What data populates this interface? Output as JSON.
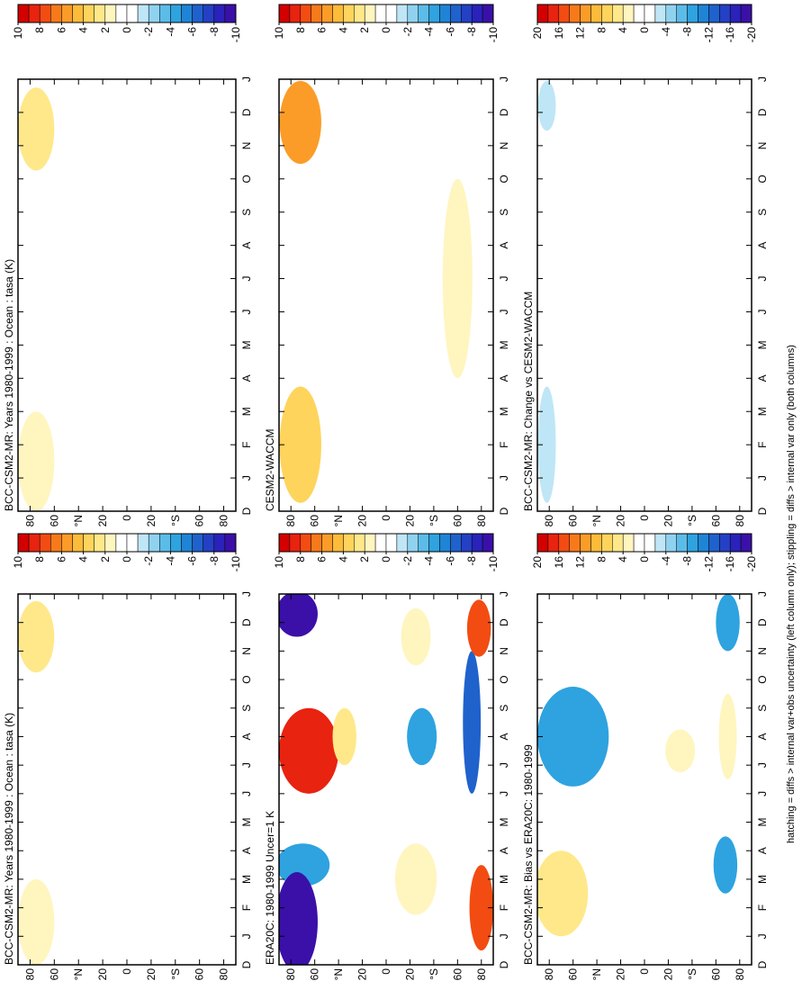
{
  "note": "hatching = diffs > internal var+obs uncertainty (left column only); stippling = diffs > internal var only (both columns)",
  "chart_data": [
    {
      "type": "contour",
      "title": "BCC-CSM2-MR: Years 1980-1999 : Ocean : tasa (K)",
      "categories": [
        "D",
        "J",
        "F",
        "M",
        "A",
        "M",
        "J",
        "J",
        "A",
        "S",
        "O",
        "N",
        "D",
        "J"
      ],
      "xlim": [
        0,
        13
      ],
      "ylim": [
        90,
        -90
      ],
      "yticks": [
        80,
        60,
        {
          "value": 40,
          "label": "°N"
        },
        20,
        0,
        {
          "value": -20,
          "label": "20"
        },
        {
          "value": -40,
          "label": "°S"
        },
        {
          "value": -60,
          "label": "60"
        },
        {
          "value": -80,
          "label": "80"
        }
      ],
      "clim": [
        10,
        -10
      ],
      "cticks": [
        10,
        8,
        6,
        4,
        2,
        0,
        -2,
        -4,
        -6,
        -8,
        -10
      ],
      "colors": [
        "#d40000",
        "#e8230f",
        "#f24c12",
        "#f77a1a",
        "#fb9c28",
        "#fdbb3a",
        "#fed45c",
        "#ffe88a",
        "#fff5bf",
        "#ffffff",
        "#ffffff",
        "#bfe6f7",
        "#8fd2f0",
        "#5cbce8",
        "#2ea3e0",
        "#1f84d6",
        "#1f62cc",
        "#2440c4",
        "#2a22ba",
        "#3a10a8"
      ],
      "regions": [
        {
          "month": 1.5,
          "lat": 75,
          "months": 3,
          "lats": 30,
          "value": 2
        },
        {
          "month": 11.5,
          "lat": 75,
          "months": 2.5,
          "lats": 30,
          "value": 3
        },
        {
          "month": 8,
          "lat": -68,
          "months": 3,
          "lats": 10,
          "value": 1
        }
      ]
    },
    {
      "type": "contour",
      "title": "BCC-CSM2-MR: Years 1980-1999 : Ocean : tasa (K)",
      "categories": [
        "D",
        "J",
        "F",
        "M",
        "A",
        "M",
        "J",
        "J",
        "A",
        "S",
        "O",
        "N",
        "D",
        "J"
      ],
      "xlim": [
        0,
        13
      ],
      "ylim": [
        90,
        -90
      ],
      "yticks": [
        80,
        60,
        {
          "value": 40,
          "label": "°N"
        },
        20,
        0,
        {
          "value": -20,
          "label": "20"
        },
        {
          "value": -40,
          "label": "°S"
        },
        {
          "value": -60,
          "label": "60"
        },
        {
          "value": -80,
          "label": "80"
        }
      ],
      "clim": [
        10,
        -10
      ],
      "cticks": [
        10,
        8,
        6,
        4,
        2,
        0,
        -2,
        -4,
        -6,
        -8,
        -10
      ],
      "colors": [
        "#d40000",
        "#e8230f",
        "#f24c12",
        "#f77a1a",
        "#fb9c28",
        "#fdbb3a",
        "#fed45c",
        "#ffe88a",
        "#fff5bf",
        "#ffffff",
        "#ffffff",
        "#bfe6f7",
        "#8fd2f0",
        "#5cbce8",
        "#2ea3e0",
        "#1f84d6",
        "#1f62cc",
        "#2440c4",
        "#2a22ba",
        "#3a10a8"
      ],
      "regions": [
        {
          "month": 1.5,
          "lat": 75,
          "months": 3,
          "lats": 30,
          "value": 2
        },
        {
          "month": 11.5,
          "lat": 75,
          "months": 2.5,
          "lats": 30,
          "value": 3
        },
        {
          "month": 8,
          "lat": -68,
          "months": 3,
          "lats": 10,
          "value": 1
        }
      ]
    },
    {
      "type": "contour",
      "title": "ERA20C: 1980-1999 Uncer=1 K",
      "categories": [
        "D",
        "J",
        "F",
        "M",
        "A",
        "M",
        "J",
        "J",
        "A",
        "S",
        "O",
        "N",
        "D",
        "J"
      ],
      "xlim": [
        0,
        13
      ],
      "ylim": [
        90,
        -90
      ],
      "yticks": [
        80,
        60,
        {
          "value": 40,
          "label": "°N"
        },
        20,
        0,
        {
          "value": -20,
          "label": "20"
        },
        {
          "value": -40,
          "label": "°S"
        },
        {
          "value": -60,
          "label": "60"
        },
        {
          "value": -80,
          "label": "80"
        }
      ],
      "clim": [
        10,
        -10
      ],
      "cticks": [
        10,
        8,
        6,
        4,
        2,
        0,
        -2,
        -4,
        -6,
        -8,
        -10
      ],
      "colors": [
        "#d40000",
        "#e8230f",
        "#f24c12",
        "#f77a1a",
        "#fb9c28",
        "#fdbb3a",
        "#fed45c",
        "#ffe88a",
        "#fff5bf",
        "#ffffff",
        "#ffffff",
        "#bfe6f7",
        "#8fd2f0",
        "#5cbce8",
        "#2ea3e0",
        "#1f84d6",
        "#1f62cc",
        "#2440c4",
        "#2a22ba",
        "#3a10a8"
      ],
      "regions": [
        {
          "month": 3.5,
          "lat": 70,
          "months": 1.5,
          "lats": 45,
          "value": -4
        },
        {
          "month": 1.5,
          "lat": 75,
          "months": 3.5,
          "lats": 35,
          "value": -9
        },
        {
          "month": 12.3,
          "lat": 75,
          "months": 1.6,
          "lats": 35,
          "value": -9
        },
        {
          "month": 7.5,
          "lat": 65,
          "months": 3,
          "lats": 50,
          "value": 9
        },
        {
          "month": 8,
          "lat": 35,
          "months": 2,
          "lats": 20,
          "value": 3
        },
        {
          "month": 3,
          "lat": -25,
          "months": 2.5,
          "lats": 35,
          "value": 2
        },
        {
          "month": 8,
          "lat": -30,
          "months": 2,
          "lats": 25,
          "value": -4
        },
        {
          "month": 11.5,
          "lat": -25,
          "months": 2,
          "lats": 25,
          "value": 2
        },
        {
          "month": 8.5,
          "lat": -72,
          "months": 5,
          "lats": 15,
          "value": -6
        },
        {
          "month": 2,
          "lat": -80,
          "months": 3,
          "lats": 20,
          "value": 8
        },
        {
          "month": 11.8,
          "lat": -78,
          "months": 2,
          "lats": 20,
          "value": 8
        }
      ]
    },
    {
      "type": "contour",
      "title": "CESM2-WACCM",
      "categories": [
        "D",
        "J",
        "F",
        "M",
        "A",
        "M",
        "J",
        "J",
        "A",
        "S",
        "O",
        "N",
        "D",
        "J"
      ],
      "xlim": [
        0,
        13
      ],
      "ylim": [
        90,
        -90
      ],
      "yticks": [
        80,
        60,
        {
          "value": 40,
          "label": "°N"
        },
        20,
        0,
        {
          "value": -20,
          "label": "20"
        },
        {
          "value": -40,
          "label": "°S"
        },
        {
          "value": -60,
          "label": "60"
        },
        {
          "value": -80,
          "label": "80"
        }
      ],
      "clim": [
        10,
        -10
      ],
      "cticks": [
        10,
        8,
        6,
        4,
        2,
        0,
        -2,
        -4,
        -6,
        -8,
        -10
      ],
      "colors": [
        "#d40000",
        "#e8230f",
        "#f24c12",
        "#f77a1a",
        "#fb9c28",
        "#fdbb3a",
        "#fed45c",
        "#ffe88a",
        "#fff5bf",
        "#ffffff",
        "#ffffff",
        "#bfe6f7",
        "#8fd2f0",
        "#5cbce8",
        "#2ea3e0",
        "#1f84d6",
        "#1f62cc",
        "#2440c4",
        "#2a22ba",
        "#3a10a8"
      ],
      "regions": [
        {
          "month": 2,
          "lat": 72,
          "months": 3.5,
          "lats": 35,
          "value": 4
        },
        {
          "month": 11.7,
          "lat": 72,
          "months": 2.5,
          "lats": 35,
          "value": 6
        },
        {
          "month": 7,
          "lat": -60,
          "months": 6,
          "lats": 25,
          "value": 2
        }
      ]
    },
    {
      "type": "contour",
      "title": "BCC-CSM2-MR: Bias vs ERA20C: 1980-1999",
      "categories": [
        "D",
        "J",
        "F",
        "M",
        "A",
        "M",
        "J",
        "J",
        "A",
        "S",
        "O",
        "N",
        "D",
        "J"
      ],
      "xlim": [
        0,
        13
      ],
      "ylim": [
        90,
        -90
      ],
      "yticks": [
        80,
        60,
        {
          "value": 40,
          "label": "°N"
        },
        20,
        0,
        {
          "value": -20,
          "label": "20"
        },
        {
          "value": -40,
          "label": "°S"
        },
        {
          "value": -60,
          "label": "60"
        },
        {
          "value": -80,
          "label": "80"
        }
      ],
      "clim": [
        20,
        -20
      ],
      "cticks": [
        20,
        16,
        12,
        8,
        4,
        0,
        -4,
        -8,
        -12,
        -16,
        -20
      ],
      "colors": [
        "#d40000",
        "#e8230f",
        "#f24c12",
        "#f77a1a",
        "#fb9c28",
        "#fdbb3a",
        "#fed45c",
        "#ffe88a",
        "#fff5bf",
        "#ffffff",
        "#ffffff",
        "#bfe6f7",
        "#8fd2f0",
        "#5cbce8",
        "#2ea3e0",
        "#1f84d6",
        "#1f62cc",
        "#2440c4",
        "#2a22ba",
        "#3a10a8"
      ],
      "regions": [
        {
          "month": 2.5,
          "lat": 70,
          "months": 3,
          "lats": 45,
          "value": 6
        },
        {
          "month": 8,
          "lat": 60,
          "months": 3.5,
          "lats": 60,
          "value": -8
        },
        {
          "month": 7.5,
          "lat": -30,
          "months": 1.5,
          "lats": 25,
          "value": 3
        },
        {
          "month": 3.5,
          "lat": -68,
          "months": 2,
          "lats": 20,
          "value": -8
        },
        {
          "month": 8,
          "lat": -70,
          "months": 3,
          "lats": 15,
          "value": 3
        },
        {
          "month": 12,
          "lat": -70,
          "months": 2,
          "lats": 20,
          "value": -8
        },
        {
          "month": 10.5,
          "lat": -25,
          "months": 1,
          "lats": 20,
          "value": 2
        }
      ]
    },
    {
      "type": "contour",
      "title": "BCC-CSM2-MR: Change vs CESM2-WACCM",
      "categories": [
        "D",
        "J",
        "F",
        "M",
        "A",
        "M",
        "J",
        "J",
        "A",
        "S",
        "O",
        "N",
        "D",
        "J"
      ],
      "xlim": [
        0,
        13
      ],
      "ylim": [
        90,
        -90
      ],
      "yticks": [
        80,
        60,
        {
          "value": 40,
          "label": "°N"
        },
        20,
        0,
        {
          "value": -20,
          "label": "20"
        },
        {
          "value": -40,
          "label": "°S"
        },
        {
          "value": -60,
          "label": "60"
        },
        {
          "value": -80,
          "label": "80"
        }
      ],
      "clim": [
        20,
        -20
      ],
      "cticks": [
        20,
        16,
        12,
        8,
        4,
        0,
        -4,
        -8,
        -12,
        -16,
        -20
      ],
      "colors": [
        "#d40000",
        "#e8230f",
        "#f24c12",
        "#f77a1a",
        "#fb9c28",
        "#fdbb3a",
        "#fed45c",
        "#ffe88a",
        "#fff5bf",
        "#ffffff",
        "#ffffff",
        "#bfe6f7",
        "#8fd2f0",
        "#5cbce8",
        "#2ea3e0",
        "#1f84d6",
        "#1f62cc",
        "#2440c4",
        "#2a22ba",
        "#3a10a8"
      ],
      "regions": [
        {
          "month": 2,
          "lat": 82,
          "months": 3.5,
          "lats": 15,
          "value": -2
        },
        {
          "month": 12.2,
          "lat": 82,
          "months": 1.5,
          "lats": 15,
          "value": -2
        }
      ]
    }
  ]
}
